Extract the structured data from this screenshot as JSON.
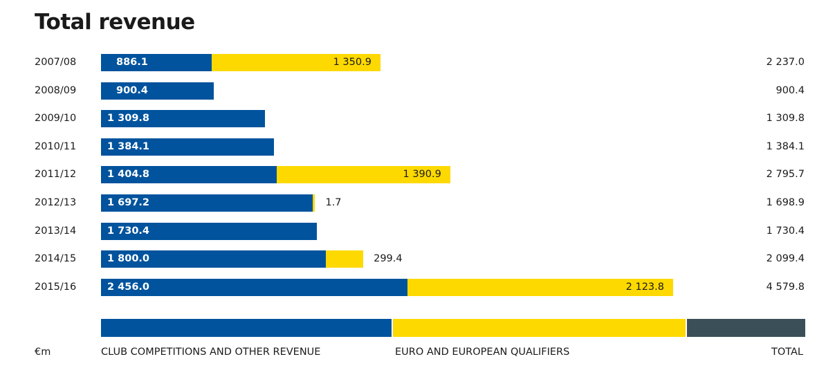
{
  "title": "Total revenue",
  "unit": "€m",
  "colors": {
    "club": "#01539d",
    "euro": "#fdd900",
    "total": "#3b4f58"
  },
  "legend": {
    "club": "CLUB COMPETITIONS AND OTHER REVENUE",
    "euro": "EURO AND EUROPEAN QUALIFIERS",
    "total": "TOTAL"
  },
  "chart_data": {
    "type": "bar",
    "orientation": "horizontal",
    "stacked": true,
    "title": "Total revenue",
    "xlabel": "€m",
    "categories": [
      "2007/08",
      "2008/09",
      "2009/10",
      "2010/11",
      "2011/12",
      "2012/13",
      "2013/14",
      "2014/15",
      "2015/16"
    ],
    "series": [
      {
        "name": "CLUB COMPETITIONS AND OTHER REVENUE",
        "values": [
          886.1,
          900.4,
          1309.8,
          1384.1,
          1404.8,
          1697.2,
          1730.4,
          1800.0,
          2456.0
        ],
        "labels": [
          "886.1",
          "900.4",
          "1 309.8",
          "1 384.1",
          "1 404.8",
          "1 697.2",
          "1 730.4",
          "1 800.0",
          "2 456.0"
        ]
      },
      {
        "name": "EURO AND EUROPEAN QUALIFIERS",
        "values": [
          1350.9,
          0,
          0,
          0,
          1390.9,
          1.7,
          0,
          299.4,
          2123.8
        ],
        "labels": [
          "1 350.9",
          "",
          "",
          "",
          "1 390.9",
          "1.7",
          "",
          "299.4",
          "2 123.8"
        ]
      }
    ],
    "totals": [
      2237.0,
      900.4,
      1309.8,
      1384.1,
      2795.7,
      1698.9,
      1730.4,
      2099.4,
      4579.8
    ],
    "total_labels": [
      "2 237.0",
      "900.4",
      "1 309.8",
      "1 384.1",
      "2 795.7",
      "1 698.9",
      "1 730.4",
      "2 099.4",
      "4 579.8"
    ],
    "xlim": [
      0,
      4579.8
    ],
    "grid": false,
    "legend_position": "bottom"
  }
}
